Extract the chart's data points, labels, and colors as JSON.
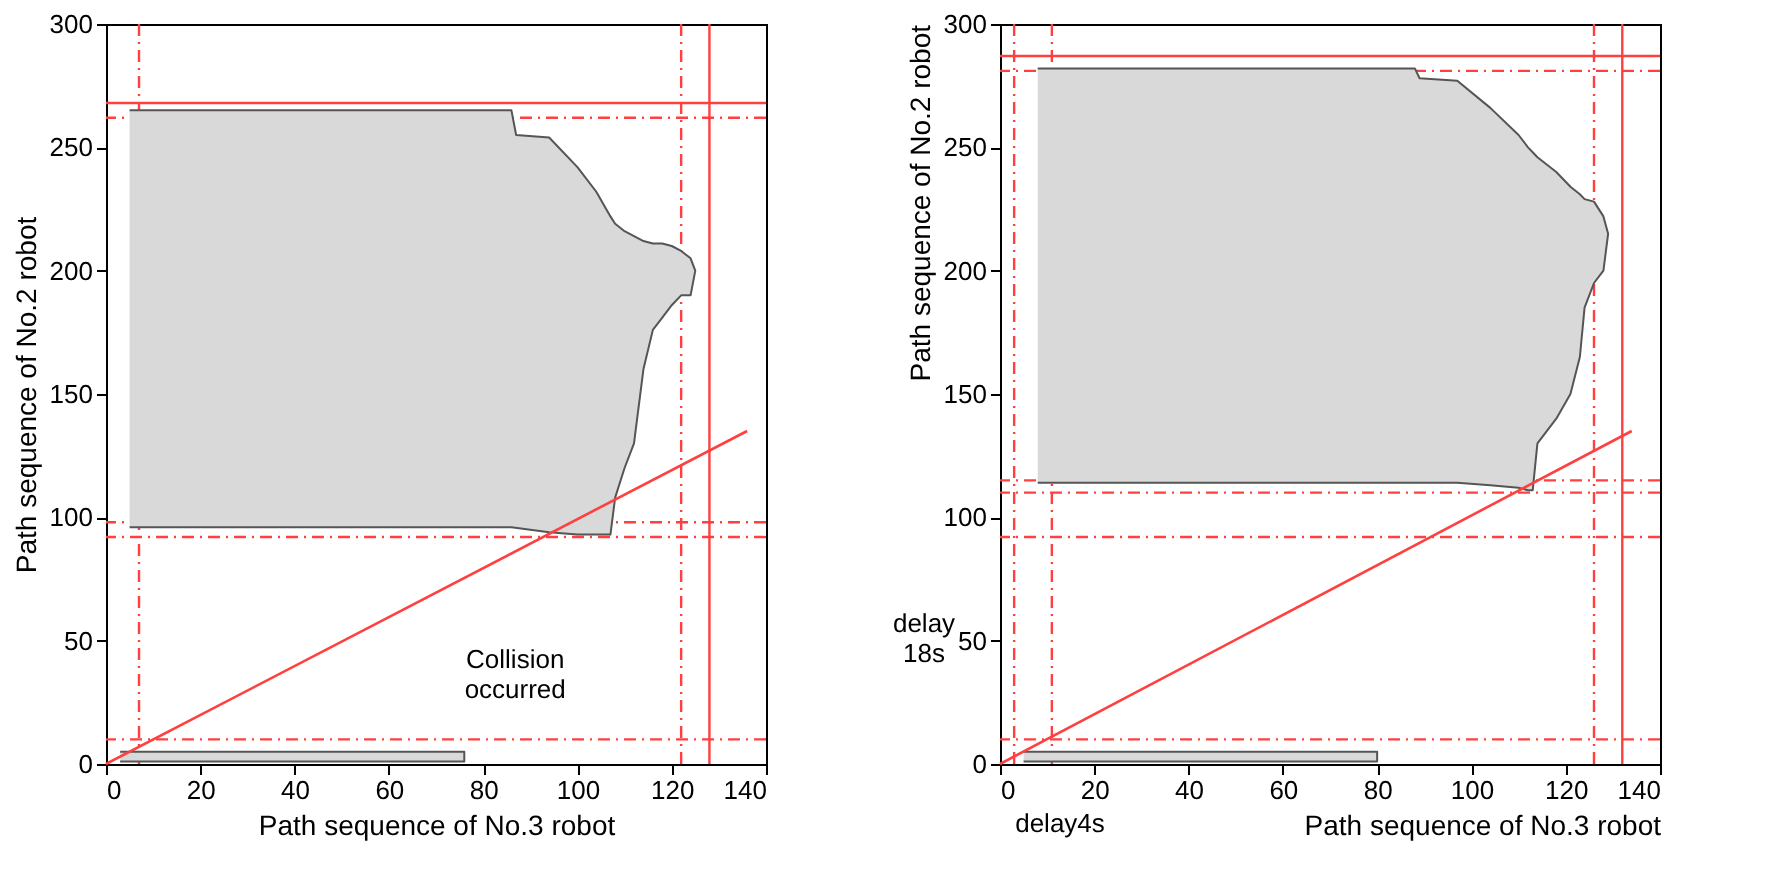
{
  "chart_data": [
    {
      "type": "line",
      "xlabel": "Path sequence of No.3 robot",
      "ylabel": "Path sequence of No.2 robot",
      "xlim": [
        0,
        140
      ],
      "ylim": [
        0,
        300
      ],
      "xticks": [
        0,
        20,
        40,
        60,
        80,
        100,
        120,
        140
      ],
      "yticks": [
        0,
        50,
        100,
        150,
        200,
        250,
        300
      ],
      "grid": false,
      "series": [
        {
          "type": "area",
          "color": "#d9d9d9",
          "x": [
            5,
            86,
            87,
            94,
            100,
            104,
            107,
            108,
            110,
            112,
            114,
            116,
            118,
            120,
            122,
            124,
            125,
            124,
            122,
            120,
            118,
            116,
            114,
            112,
            110,
            108,
            107,
            104,
            100,
            94,
            86,
            5
          ],
          "values": [
            265,
            265,
            255,
            254,
            242,
            232,
            222,
            219,
            216,
            214,
            212,
            211,
            211,
            210,
            208,
            205,
            200,
            190,
            190,
            186,
            181,
            176,
            160,
            130,
            120,
            108,
            93,
            93,
            93,
            94,
            96,
            96
          ]
        },
        {
          "type": "area",
          "color": "#d9d9d9",
          "x": [
            3,
            76,
            76,
            3
          ],
          "values": [
            5,
            5,
            1,
            1
          ]
        },
        {
          "color": "#ff4040",
          "x": [
            0,
            136
          ],
          "values": [
            0,
            135
          ]
        }
      ],
      "ref_lines": [
        {
          "axis": "x",
          "value": 128,
          "color": "#ff4040",
          "line_style": "solid"
        },
        {
          "axis": "y",
          "value": 268,
          "color": "#ff4040",
          "line_style": "solid"
        },
        {
          "axis": "x",
          "value": 7,
          "color": "#ff4040",
          "line_style": "dashed"
        },
        {
          "axis": "x",
          "value": 122,
          "color": "#ff4040",
          "line_style": "dashed"
        },
        {
          "axis": "y",
          "value": 262,
          "color": "#ff4040",
          "line_style": "dashed"
        },
        {
          "axis": "y",
          "value": 98,
          "color": "#ff4040",
          "line_style": "dashed"
        },
        {
          "axis": "y",
          "value": 92,
          "color": "#ff4040",
          "line_style": "dashed"
        },
        {
          "axis": "y",
          "value": 10,
          "color": "#ff4040",
          "line_style": "dashed"
        }
      ],
      "annotations": [
        "Collision occurred"
      ]
    },
    {
      "type": "line",
      "xlabel": "Path sequence of No.3 robot",
      "ylabel": "Path sequence of No.2 robot",
      "xlim": [
        0,
        140
      ],
      "ylim": [
        0,
        300
      ],
      "xticks": [
        0,
        20,
        40,
        60,
        80,
        100,
        120,
        140
      ],
      "yticks": [
        0,
        50,
        100,
        150,
        200,
        250,
        300
      ],
      "grid": false,
      "series": [
        {
          "type": "area",
          "color": "#d9d9d9",
          "x": [
            8,
            88,
            89,
            97,
            104,
            110,
            112,
            113,
            114,
            118,
            121,
            123,
            124,
            126,
            128,
            129,
            128,
            126,
            124,
            123,
            121,
            118,
            114,
            113,
            112,
            110,
            104,
            97,
            89,
            88,
            8
          ],
          "values": [
            282,
            282,
            278,
            277,
            266,
            255,
            250,
            248,
            246,
            240,
            234,
            231,
            229,
            228,
            222,
            215,
            200,
            195,
            185,
            165,
            150,
            140,
            130,
            111,
            111,
            112,
            113,
            114,
            114,
            114,
            114
          ]
        },
        {
          "type": "area",
          "color": "#d9d9d9",
          "x": [
            5,
            80,
            80,
            5
          ],
          "values": [
            5,
            5,
            1,
            1
          ]
        },
        {
          "color": "#ff4040",
          "x": [
            0,
            134
          ],
          "values": [
            0,
            135
          ]
        }
      ],
      "ref_lines": [
        {
          "axis": "x",
          "value": 132,
          "color": "#ff4040",
          "line_style": "solid"
        },
        {
          "axis": "y",
          "value": 287,
          "color": "#ff4040",
          "line_style": "solid"
        },
        {
          "axis": "x",
          "value": 3,
          "color": "#ff4040",
          "line_style": "dashed"
        },
        {
          "axis": "x",
          "value": 11,
          "color": "#ff4040",
          "line_style": "dashed"
        },
        {
          "axis": "x",
          "value": 126,
          "color": "#ff4040",
          "line_style": "dashed"
        },
        {
          "axis": "y",
          "value": 281,
          "color": "#ff4040",
          "line_style": "dashed"
        },
        {
          "axis": "y",
          "value": 115,
          "color": "#ff4040",
          "line_style": "dashed"
        },
        {
          "axis": "y",
          "value": 110,
          "color": "#ff4040",
          "line_style": "dashed"
        },
        {
          "axis": "y",
          "value": 92,
          "color": "#ff4040",
          "line_style": "dashed"
        },
        {
          "axis": "y",
          "value": 10,
          "color": "#ff4040",
          "line_style": "dashed"
        }
      ],
      "annotations": [
        "delay 18s",
        "delay4s"
      ]
    }
  ]
}
